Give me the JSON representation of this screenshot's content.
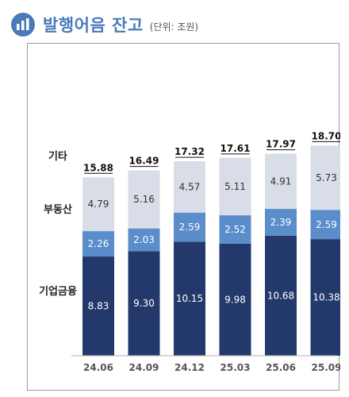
{
  "header": {
    "title": "발행어음 잔고",
    "unit_note": "(단위: 조원)",
    "icon": "bar-chart-icon"
  },
  "chart_data": {
    "type": "bar",
    "stacked": true,
    "title": "발행어음 잔고",
    "unit": "(단위: 조원)",
    "categories": [
      "24.06",
      "24.09",
      "24.12",
      "25.03",
      "25.06",
      "25.09"
    ],
    "series": [
      {
        "name": "기업금융",
        "values": [
          8.83,
          9.3,
          10.15,
          9.98,
          10.68,
          10.38
        ],
        "color": "#24396b",
        "label_color": "#ffffff"
      },
      {
        "name": "부동산",
        "values": [
          2.26,
          2.03,
          2.59,
          2.52,
          2.39,
          2.59
        ],
        "color": "#5b8dcb",
        "label_color": "#ffffff"
      },
      {
        "name": "기타",
        "values": [
          4.79,
          5.16,
          4.57,
          5.11,
          4.91,
          5.73
        ],
        "color": "#d8dde8",
        "label_color": "#333333"
      }
    ],
    "totals": [
      15.88,
      16.49,
      17.32,
      17.61,
      17.97,
      18.7
    ],
    "value_labels": {
      "기업금융": [
        "8.83",
        "9.30",
        "10.15",
        "9.98",
        "10.68",
        "10.38"
      ],
      "부동산": [
        "2.26",
        "2.03",
        "2.59",
        "2.52",
        "2.39",
        "2.59"
      ],
      "기타": [
        "4.79",
        "5.16",
        "4.57",
        "5.11",
        "4.91",
        "5.73"
      ]
    },
    "total_labels": [
      "15.88",
      "16.49",
      "17.32",
      "17.61",
      "17.97",
      "18.70"
    ],
    "ylim": [
      0,
      21
    ],
    "grid": false,
    "legend": "left-inline",
    "axis_color": "#b0b0b0",
    "tick_color": "#555555"
  }
}
